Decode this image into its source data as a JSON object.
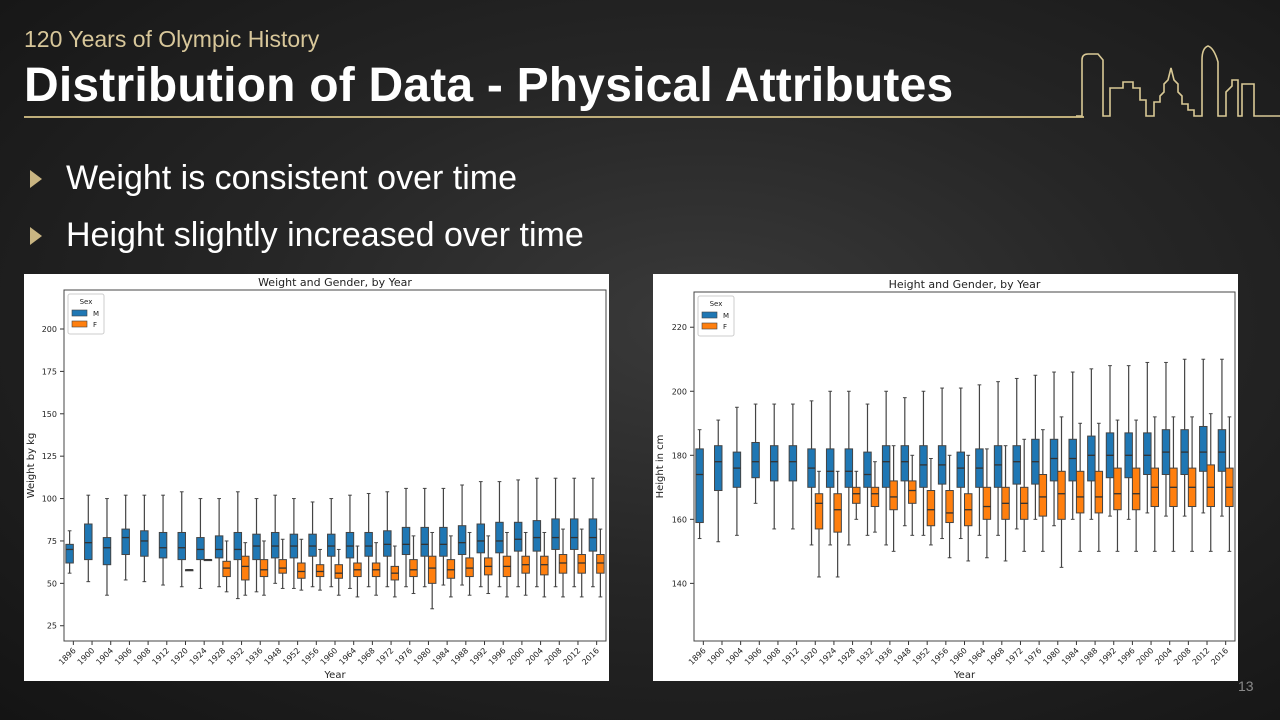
{
  "header": {
    "subtitle": "120 Years of Olympic History",
    "title": "Distribution of Data - Physical Attributes"
  },
  "bullets": [
    "Weight is consistent over time",
    "Height slightly increased over time"
  ],
  "page_number": "13",
  "colors": {
    "accent": "#c9b582",
    "male": "#1f77b4",
    "female": "#ff7f0e"
  },
  "chart_data": [
    {
      "type": "box",
      "title": "Weight and Gender, by Year",
      "xlabel": "Year",
      "ylabel": "Weight by kg",
      "ylim": [
        16,
        223
      ],
      "yticks": [
        25,
        50,
        75,
        100,
        125,
        150,
        175,
        200
      ],
      "legend": {
        "title": "Sex",
        "placement": "top-left",
        "entries": [
          "M",
          "F"
        ]
      },
      "categories": [
        "1896",
        "1900",
        "1904",
        "1906",
        "1908",
        "1912",
        "1920",
        "1924",
        "1928",
        "1932",
        "1936",
        "1948",
        "1952",
        "1956",
        "1960",
        "1964",
        "1968",
        "1972",
        "1976",
        "1980",
        "1984",
        "1988",
        "1992",
        "1996",
        "2000",
        "2004",
        "2008",
        "2012",
        "2016"
      ],
      "series": [
        {
          "name": "M",
          "fields": [
            "median",
            "q1",
            "q3",
            "whisker_low",
            "whisker_high"
          ],
          "values": [
            [
              70,
              62,
              73,
              56,
              81
            ],
            [
              74,
              64,
              85,
              51,
              102
            ],
            [
              71,
              61,
              77,
              43,
              100
            ],
            [
              77,
              67,
              82,
              52,
              102
            ],
            [
              75,
              66,
              81,
              51,
              102
            ],
            [
              71,
              65,
              80,
              49,
              102
            ],
            [
              71,
              64,
              80,
              48,
              104
            ],
            [
              70,
              64,
              77,
              47,
              100
            ],
            [
              70,
              65,
              78,
              48,
              100
            ],
            [
              70,
              64,
              80,
              41,
              104
            ],
            [
              72,
              64,
              79,
              45,
              100
            ],
            [
              72,
              65,
              80,
              50,
              102
            ],
            [
              72,
              65,
              79,
              47,
              100
            ],
            [
              72,
              66,
              79,
              48,
              98
            ],
            [
              72,
              66,
              79,
              48,
              100
            ],
            [
              72,
              65,
              80,
              47,
              102
            ],
            [
              72,
              66,
              80,
              48,
              103
            ],
            [
              73,
              66,
              81,
              48,
              104
            ],
            [
              73,
              67,
              83,
              48,
              106
            ],
            [
              73,
              66,
              83,
              48,
              106
            ],
            [
              73,
              66,
              83,
              49,
              106
            ],
            [
              74,
              67,
              84,
              49,
              108
            ],
            [
              75,
              68,
              85,
              48,
              110
            ],
            [
              75,
              68,
              86,
              48,
              110
            ],
            [
              76,
              69,
              86,
              48,
              111
            ],
            [
              77,
              69,
              87,
              48,
              112
            ],
            [
              77,
              70,
              88,
              48,
              112
            ],
            [
              77,
              70,
              88,
              48,
              112
            ],
            [
              77,
              69,
              88,
              48,
              112
            ]
          ]
        },
        {
          "name": "F",
          "fields": [
            "median",
            "q1",
            "q3",
            "whisker_low",
            "whisker_high"
          ],
          "values": [
            null,
            null,
            null,
            null,
            null,
            null,
            [
              58,
              58,
              58,
              58,
              58
            ],
            [
              64,
              64,
              64,
              64,
              64
            ],
            [
              59,
              54,
              63,
              45,
              75
            ],
            [
              60,
              52,
              66,
              43,
              74
            ],
            [
              58,
              54,
              64,
              43,
              75
            ],
            [
              59,
              56,
              64,
              47,
              76
            ],
            [
              57,
              53,
              62,
              46,
              76
            ],
            [
              57,
              54,
              61,
              46,
              70
            ],
            [
              56,
              53,
              61,
              43,
              70
            ],
            [
              58,
              54,
              62,
              42,
              72
            ],
            [
              58,
              54,
              62,
              43,
              74
            ],
            [
              56,
              52,
              60,
              42,
              72
            ],
            [
              58,
              54,
              64,
              44,
              78
            ],
            [
              59,
              50,
              66,
              35,
              80
            ],
            [
              58,
              53,
              64,
              42,
              78
            ],
            [
              59,
              54,
              65,
              43,
              80
            ],
            [
              60,
              55,
              65,
              44,
              78
            ],
            [
              60,
              54,
              66,
              42,
              80
            ],
            [
              61,
              56,
              66,
              43,
              80
            ],
            [
              61,
              55,
              66,
              42,
              80
            ],
            [
              62,
              56,
              67,
              42,
              82
            ],
            [
              62,
              56,
              67,
              42,
              82
            ],
            [
              62,
              56,
              67,
              42,
              82
            ]
          ]
        }
      ]
    },
    {
      "type": "box",
      "title": "Height and Gender, by Year",
      "xlabel": "Year",
      "ylabel": "Height in cm",
      "ylim": [
        122,
        231
      ],
      "yticks": [
        140,
        160,
        180,
        200,
        220
      ],
      "legend": {
        "title": "Sex",
        "placement": "top-left",
        "entries": [
          "M",
          "F"
        ]
      },
      "categories": [
        "1896",
        "1900",
        "1904",
        "1906",
        "1908",
        "1912",
        "1920",
        "1924",
        "1928",
        "1932",
        "1936",
        "1948",
        "1952",
        "1956",
        "1960",
        "1964",
        "1968",
        "1972",
        "1976",
        "1980",
        "1984",
        "1988",
        "1992",
        "1996",
        "2000",
        "2004",
        "2008",
        "2012",
        "2016"
      ],
      "series": [
        {
          "name": "M",
          "fields": [
            "median",
            "q1",
            "q3",
            "whisker_low",
            "whisker_high"
          ],
          "values": [
            [
              174,
              159,
              182,
              154,
              188
            ],
            [
              178,
              169,
              183,
              153,
              191
            ],
            [
              176,
              170,
              181,
              155,
              195
            ],
            [
              178,
              173,
              184,
              165,
              196
            ],
            [
              178,
              172,
              183,
              157,
              196
            ],
            [
              178,
              172,
              183,
              157,
              196
            ],
            [
              176,
              170,
              182,
              152,
              197
            ],
            [
              175,
              170,
              182,
              152,
              200
            ],
            [
              175,
              170,
              182,
              152,
              200
            ],
            [
              174,
              170,
              181,
              155,
              196
            ],
            [
              178,
              170,
              183,
              152,
              200
            ],
            [
              178,
              172,
              183,
              158,
              198
            ],
            [
              177,
              170,
              183,
              155,
              200
            ],
            [
              177,
              171,
              183,
              154,
              201
            ],
            [
              176,
              170,
              181,
              154,
              201
            ],
            [
              176,
              170,
              182,
              155,
              202
            ],
            [
              177,
              170,
              183,
              155,
              203
            ],
            [
              178,
              171,
              183,
              157,
              204
            ],
            [
              178,
              171,
              185,
              160,
              205
            ],
            [
              179,
              172,
              185,
              158,
              206
            ],
            [
              179,
              172,
              185,
              160,
              206
            ],
            [
              180,
              172,
              186,
              160,
              207
            ],
            [
              180,
              173,
              187,
              161,
              208
            ],
            [
              180,
              173,
              187,
              160,
              208
            ],
            [
              180,
              174,
              187,
              162,
              209
            ],
            [
              181,
              174,
              188,
              161,
              209
            ],
            [
              181,
              174,
              188,
              161,
              210
            ],
            [
              181,
              175,
              189,
              162,
              210
            ],
            [
              181,
              175,
              188,
              161,
              210
            ]
          ]
        },
        {
          "name": "F",
          "fields": [
            "median",
            "q1",
            "q3",
            "whisker_low",
            "whisker_high"
          ],
          "values": [
            null,
            null,
            null,
            null,
            null,
            null,
            [
              165,
              157,
              168,
              142,
              175
            ],
            [
              163,
              156,
              168,
              142,
              175
            ],
            [
              168,
              165,
              170,
              160,
              175
            ],
            [
              168,
              164,
              170,
              156,
              178
            ],
            [
              167,
              163,
              172,
              150,
              183
            ],
            [
              169,
              165,
              172,
              155,
              180
            ],
            [
              163,
              158,
              169,
              152,
              179
            ],
            [
              162,
              159,
              169,
              148,
              180
            ],
            [
              163,
              158,
              168,
              147,
              180
            ],
            [
              164,
              160,
              170,
              148,
              182
            ],
            [
              165,
              160,
              170,
              147,
              183
            ],
            [
              165,
              160,
              170,
              150,
              185
            ],
            [
              167,
              161,
              174,
              150,
              188
            ],
            [
              168,
              160,
              175,
              145,
              192
            ],
            [
              167,
              162,
              175,
              150,
              190
            ],
            [
              167,
              162,
              175,
              150,
              190
            ],
            [
              168,
              163,
              176,
              150,
              191
            ],
            [
              168,
              163,
              176,
              150,
              191
            ],
            [
              170,
              164,
              176,
              150,
              192
            ],
            [
              170,
              164,
              176,
              150,
              192
            ],
            [
              170,
              164,
              176,
              150,
              192
            ],
            [
              170,
              164,
              177,
              150,
              193
            ],
            [
              170,
              164,
              176,
              150,
              192
            ]
          ]
        }
      ]
    }
  ]
}
